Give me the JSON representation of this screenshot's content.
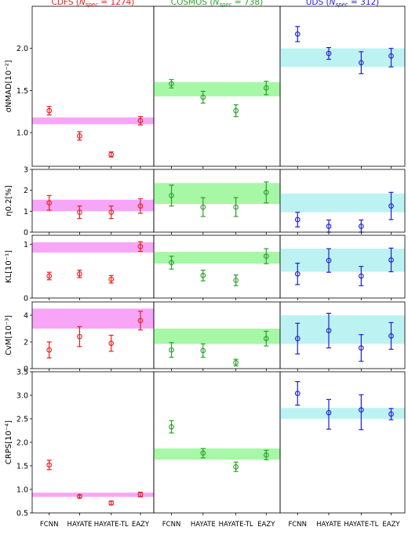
{
  "figure": {
    "column_titles": [
      {
        "prefix": "CDFS (",
        "sub": "N",
        "subsub": "spec",
        "suffix": " = 1274)",
        "color": "#e8201c"
      },
      {
        "prefix": "COSMOS (",
        "sub": "N",
        "subsub": "spec",
        "suffix": " = 738)",
        "color": "#2ca02c"
      },
      {
        "prefix": "UDS (",
        "sub": "N",
        "subsub": "spec",
        "suffix": " = 312)",
        "color": "#1f1fd6"
      }
    ],
    "x_ticklabels": [
      "FCNN",
      "HAYATE",
      "HAYATE-TL",
      "EAZY"
    ],
    "band_colors": [
      "#f7a6f7",
      "#a6f7a6",
      "#bdf2f2"
    ],
    "marker_colors": [
      "#e8201c",
      "#2ca02c",
      "#1f1fd6"
    ]
  },
  "chart_data": [
    {
      "type": "scatter",
      "metric": "sigma_nmad",
      "ylabel": "σNMAD[10⁻²]",
      "ylim": [
        0.6,
        2.5
      ],
      "yticks": [
        "1.0",
        "1.5",
        "2.0"
      ],
      "ytick_values": [
        1.0,
        1.5,
        2.0
      ],
      "categories": [
        "FCNN",
        "HAYATE",
        "HAYATE-TL",
        "EAZY"
      ],
      "series": [
        {
          "name": "CDFS",
          "values": [
            1.26,
            0.96,
            0.74,
            1.14
          ],
          "err_low": [
            0.05,
            0.05,
            0.03,
            0.05
          ],
          "err_high": [
            0.05,
            0.05,
            0.03,
            0.05
          ],
          "band": [
            1.1,
            1.18
          ]
        },
        {
          "name": "COSMOS",
          "values": [
            1.58,
            1.42,
            1.26,
            1.53
          ],
          "err_low": [
            0.05,
            0.07,
            0.07,
            0.08
          ],
          "err_high": [
            0.05,
            0.07,
            0.07,
            0.08
          ],
          "band": [
            1.43,
            1.6
          ]
        },
        {
          "name": "UDS",
          "values": [
            2.17,
            1.94,
            1.83,
            1.91
          ],
          "err_low": [
            0.09,
            0.07,
            0.13,
            0.13
          ],
          "err_high": [
            0.09,
            0.07,
            0.13,
            0.09
          ],
          "band": [
            1.78,
            2.0
          ]
        }
      ]
    },
    {
      "type": "scatter",
      "metric": "eta_0.2",
      "ylabel": "η0.2[%]",
      "ylim": [
        0.0,
        3.0
      ],
      "yticks": [
        "0",
        "1",
        "2",
        "3"
      ],
      "ytick_values": [
        0,
        1,
        2,
        3
      ],
      "categories": [
        "FCNN",
        "HAYATE",
        "HAYATE-TL",
        "EAZY"
      ],
      "series": [
        {
          "name": "CDFS",
          "values": [
            1.4,
            0.95,
            0.95,
            1.25
          ],
          "err_low": [
            0.35,
            0.3,
            0.3,
            0.35
          ],
          "err_high": [
            0.35,
            0.3,
            0.3,
            0.35
          ],
          "band": [
            1.0,
            1.55
          ]
        },
        {
          "name": "COSMOS",
          "values": [
            1.75,
            1.2,
            1.2,
            1.9
          ],
          "err_low": [
            0.5,
            0.45,
            0.45,
            0.5
          ],
          "err_high": [
            0.5,
            0.45,
            0.45,
            0.5
          ],
          "band": [
            1.35,
            2.35
          ]
        },
        {
          "name": "UDS",
          "values": [
            0.6,
            0.28,
            0.28,
            1.25
          ],
          "err_low": [
            0.35,
            0.28,
            0.28,
            0.65
          ],
          "err_high": [
            0.35,
            0.3,
            0.3,
            0.65
          ],
          "band": [
            0.95,
            1.85
          ]
        }
      ]
    },
    {
      "type": "scatter",
      "metric": "KL",
      "ylabel": "KL[10⁻¹]",
      "ylim": [
        0.0,
        1.17
      ],
      "yticks": [
        "0",
        "1"
      ],
      "ytick_values": [
        0,
        1
      ],
      "categories": [
        "FCNN",
        "HAYATE",
        "HAYATE-TL",
        "EAZY"
      ],
      "series": [
        {
          "name": "CDFS",
          "values": [
            0.41,
            0.45,
            0.35,
            0.96
          ],
          "err_low": [
            0.07,
            0.07,
            0.07,
            0.09
          ],
          "err_high": [
            0.07,
            0.07,
            0.07,
            0.09
          ],
          "band": [
            0.85,
            1.04
          ]
        },
        {
          "name": "COSMOS",
          "values": [
            0.66,
            0.42,
            0.33,
            0.78
          ],
          "err_low": [
            0.12,
            0.1,
            0.1,
            0.14
          ],
          "err_high": [
            0.12,
            0.1,
            0.1,
            0.14
          ],
          "band": [
            0.64,
            0.86
          ]
        },
        {
          "name": "UDS",
          "values": [
            0.45,
            0.7,
            0.41,
            0.71
          ],
          "err_low": [
            0.2,
            0.22,
            0.18,
            0.22
          ],
          "err_high": [
            0.2,
            0.22,
            0.18,
            0.22
          ],
          "band": [
            0.49,
            0.92
          ]
        }
      ]
    },
    {
      "type": "scatter",
      "metric": "CvM",
      "ylabel": "CvM[10⁻³]",
      "ylim": [
        0.0,
        5.0
      ],
      "yticks": [
        "0",
        "2",
        "4"
      ],
      "ytick_values": [
        0,
        2,
        4
      ],
      "categories": [
        "FCNN",
        "HAYATE",
        "HAYATE-TL",
        "EAZY"
      ],
      "series": [
        {
          "name": "CDFS",
          "values": [
            1.4,
            2.4,
            1.9,
            3.6
          ],
          "err_low": [
            0.6,
            0.75,
            0.6,
            0.7
          ],
          "err_high": [
            0.6,
            0.75,
            0.6,
            0.7
          ],
          "band": [
            3.0,
            4.5
          ]
        },
        {
          "name": "COSMOS",
          "values": [
            1.4,
            1.35,
            0.45,
            2.25
          ],
          "err_low": [
            0.55,
            0.5,
            0.25,
            0.55
          ],
          "err_high": [
            0.55,
            0.5,
            0.25,
            0.55
          ],
          "band": [
            1.85,
            3.0
          ]
        },
        {
          "name": "UDS",
          "values": [
            2.25,
            2.85,
            1.55,
            2.45
          ],
          "err_low": [
            1.15,
            1.3,
            1.0,
            1.0
          ],
          "err_high": [
            1.15,
            1.3,
            1.0,
            1.0
          ],
          "band": [
            1.85,
            4.0
          ]
        }
      ]
    },
    {
      "type": "scatter",
      "metric": "CRPS",
      "ylabel": "CRPS[10⁻⁴]",
      "ylim": [
        0.5,
        3.5
      ],
      "yticks": [
        "0.5",
        "1.0",
        "1.5",
        "2.0",
        "2.5",
        "3.0",
        "3.5"
      ],
      "ytick_values": [
        0.5,
        1.0,
        1.5,
        2.0,
        2.5,
        3.0,
        3.5
      ],
      "categories": [
        "FCNN",
        "HAYATE",
        "HAYATE-TL",
        "EAZY"
      ],
      "series": [
        {
          "name": "CDFS",
          "values": [
            1.52,
            0.85,
            0.71,
            0.89
          ],
          "err_low": [
            0.1,
            0.03,
            0.04,
            0.05
          ],
          "err_high": [
            0.1,
            0.03,
            0.04,
            0.05
          ],
          "band": [
            0.84,
            0.93
          ]
        },
        {
          "name": "COSMOS",
          "values": [
            2.33,
            1.77,
            1.48,
            1.73
          ],
          "err_low": [
            0.13,
            0.1,
            0.1,
            0.1
          ],
          "err_high": [
            0.13,
            0.1,
            0.1,
            0.1
          ],
          "band": [
            1.63,
            1.87
          ]
        },
        {
          "name": "UDS",
          "values": [
            3.04,
            2.63,
            2.69,
            2.6
          ],
          "err_low": [
            0.25,
            0.35,
            0.42,
            0.12
          ],
          "err_high": [
            0.25,
            0.28,
            0.32,
            0.12
          ],
          "band": [
            2.5,
            2.73
          ]
        }
      ]
    }
  ]
}
